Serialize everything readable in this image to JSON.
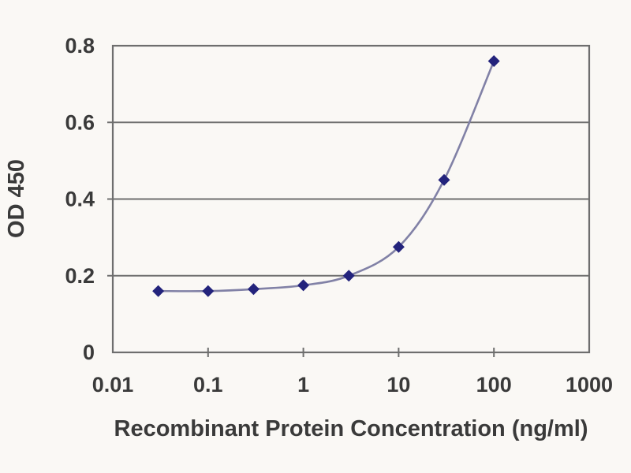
{
  "figure": {
    "description": "ELISA standard curve line chart"
  },
  "chart_data": {
    "type": "line",
    "x": [
      0.03,
      0.1,
      0.3,
      1,
      3,
      10,
      30,
      100
    ],
    "y": [
      0.16,
      0.16,
      0.165,
      0.175,
      0.2,
      0.275,
      0.45,
      0.76
    ],
    "title": "",
    "xlabel": "Recombinant Protein Concentration (ng/ml)",
    "ylabel": "OD 450",
    "x_scale": "log",
    "y_scale": "linear",
    "xlim": [
      0.01,
      1000
    ],
    "ylim": [
      0,
      0.8
    ],
    "x_ticks": [
      "0.01",
      "0.1",
      "1",
      "10",
      "100",
      "1000"
    ],
    "y_ticks": [
      "0",
      "0.2",
      "0.4",
      "0.6",
      "0.8"
    ],
    "grid": "horizontal",
    "legend": "none",
    "marker": "diamond",
    "colors": {
      "line": "#8181a6",
      "marker": "#23237c",
      "grid": "#6e6e6e",
      "axis": "#6e6e6e",
      "text": "#3a3a3a",
      "background": "#faf8f5"
    }
  }
}
